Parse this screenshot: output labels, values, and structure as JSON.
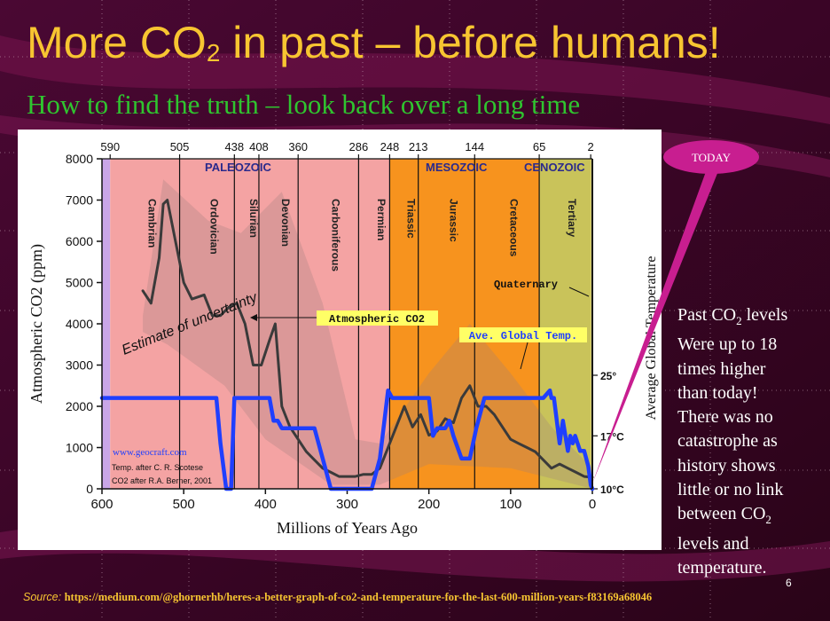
{
  "slide": {
    "title_main": "More CO",
    "title_sub": "2",
    "title_rest": " in past – before humans!",
    "subtitle": "How to find the truth – look back over a long time",
    "callout_label": "TODAY",
    "side_text": {
      "p1": "Past CO",
      "p1_sub": "2",
      "p1_rest": " levels",
      "p2": "Were up to 18",
      "p3": "times higher",
      "p4": "than today!",
      "p5": "There was no",
      "p6": "catastrophe as",
      "p7": "history shows",
      "p8": "little or no link",
      "p9": "between CO",
      "p9_sub": "2",
      "p10": "levels and",
      "p11": "temperature."
    },
    "source_label": "Source:",
    "source_url": "https://medium.com/@ghornerhb/heres-a-better-graph-of-co2-and-temperature-for-the-last-600-million-years-f83169a68046",
    "page_number": "6",
    "colors": {
      "title": "#f7c531",
      "subtitle": "#2fc52f",
      "background": "#3a0526",
      "callout": "#c81e90"
    }
  },
  "chart_data": {
    "type": "line",
    "xlabel": "Millions of Years Ago",
    "ylabel": "Atmospheric CO2 (ppm)",
    "y2label": "Average Global Temperature",
    "xlim": [
      600,
      0
    ],
    "ylim": [
      0,
      8000
    ],
    "x_ticks": [
      600,
      500,
      400,
      300,
      200,
      100,
      0
    ],
    "y_ticks": [
      0,
      1000,
      2000,
      3000,
      4000,
      5000,
      6000,
      7000,
      8000
    ],
    "y2_ticks": [
      {
        "label": "10°C",
        "value": 10
      },
      {
        "label": "17°C",
        "value": 17
      },
      {
        "label": "25°",
        "value": 25
      }
    ],
    "top_ticks": [
      "590",
      "505",
      "438",
      "408",
      "360",
      "286",
      "248",
      "213",
      "144",
      "65",
      "2"
    ],
    "top_tick_values": [
      590,
      505,
      438,
      408,
      360,
      286,
      248,
      213,
      144,
      65,
      2
    ],
    "eras": [
      {
        "name": "PALEOZOIC",
        "start": 590,
        "end": 248,
        "color": "#f4a3a3"
      },
      {
        "name": "MESOZOIC",
        "start": 248,
        "end": 65,
        "color": "#f7931e"
      },
      {
        "name": "CENOZOIC",
        "start": 65,
        "end": 0,
        "color": "#c9c35a"
      }
    ],
    "periods": [
      {
        "name": "Cambrian",
        "start": 590,
        "end": 505
      },
      {
        "name": "Ordovician",
        "start": 505,
        "end": 438
      },
      {
        "name": "Silurian",
        "start": 438,
        "end": 408
      },
      {
        "name": "Devonian",
        "start": 408,
        "end": 360
      },
      {
        "name": "Carboniferous",
        "start": 360,
        "end": 286
      },
      {
        "name": "Permian",
        "start": 286,
        "end": 248
      },
      {
        "name": "Triassic",
        "start": 248,
        "end": 213
      },
      {
        "name": "Jurassic",
        "start": 213,
        "end": 144
      },
      {
        "name": "Cretaceous",
        "start": 144,
        "end": 65
      },
      {
        "name": "Tertiary",
        "start": 65,
        "end": 2
      }
    ],
    "annotations": {
      "quaternary": "Quaternary",
      "co2_label": "Atmospheric CO2",
      "temp_label": "Ave. Global Temp.",
      "uncertainty": "Estimate of uncertainty",
      "credit_site": "www.geocraft.com",
      "credit_temp": "Temp. after C. R. Scotese",
      "credit_co2": "CO2 after R.A. Berner, 2001"
    },
    "series": [
      {
        "name": "Atmospheric CO2",
        "color": "#3a3a3a",
        "x": [
          550,
          540,
          530,
          525,
          520,
          510,
          500,
          490,
          475,
          465,
          455,
          445,
          435,
          425,
          415,
          405,
          395,
          388,
          380,
          370,
          360,
          350,
          340,
          330,
          320,
          310,
          300,
          290,
          280,
          270,
          260,
          250,
          240,
          230,
          220,
          210,
          200,
          190,
          180,
          170,
          160,
          150,
          140,
          130,
          120,
          110,
          100,
          90,
          80,
          70,
          60,
          50,
          40,
          30,
          20,
          10,
          0
        ],
        "values": [
          4800,
          4500,
          5600,
          6900,
          7000,
          6000,
          5000,
          4600,
          4700,
          4200,
          4200,
          4400,
          4500,
          4000,
          3000,
          3000,
          3600,
          4000,
          2000,
          1500,
          1200,
          900,
          700,
          500,
          400,
          300,
          300,
          300,
          350,
          350,
          500,
          1000,
          1500,
          2000,
          1500,
          1800,
          1300,
          1400,
          1700,
          1600,
          2200,
          2500,
          2000,
          2000,
          1800,
          1500,
          1200,
          1100,
          1000,
          900,
          700,
          500,
          600,
          500,
          400,
          300,
          280
        ]
      },
      {
        "name": "Ave. Global Temp.",
        "color": "#1f3fff",
        "x": [
          600,
          460,
          455,
          448,
          442,
          438,
          432,
          425,
          395,
          390,
          385,
          380,
          340,
          330,
          320,
          310,
          300,
          290,
          270,
          260,
          250,
          245,
          240,
          235,
          230,
          200,
          195,
          190,
          180,
          175,
          170,
          160,
          150,
          142,
          132,
          120,
          110,
          80,
          60,
          52,
          50,
          47,
          40,
          36,
          33,
          30,
          27,
          24,
          21,
          15,
          10,
          5,
          2,
          0
        ],
        "values": [
          22,
          22,
          16,
          10,
          10,
          22,
          22,
          22,
          22,
          19,
          19,
          18,
          18,
          14,
          10,
          10,
          10,
          10,
          10,
          14,
          23,
          22,
          22,
          22,
          22,
          22,
          17,
          18,
          18,
          19,
          17,
          14,
          14,
          18,
          22,
          22,
          22,
          22,
          22,
          23,
          22,
          22,
          16,
          19,
          17,
          15,
          17,
          16,
          17,
          15,
          15,
          13,
          10.5,
          10
        ]
      }
    ]
  }
}
